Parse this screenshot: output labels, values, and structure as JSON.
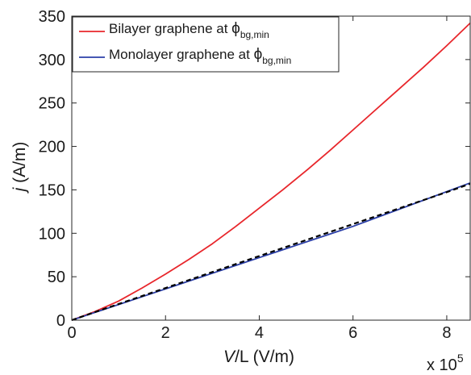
{
  "chart_data": {
    "type": "line",
    "title": "",
    "xlabel": {
      "italic": "V",
      "rest": "/L (V/m)"
    },
    "ylabel": {
      "italic": "j",
      "rest": " (A/m)"
    },
    "x_multiplier_label": {
      "base": "x 10",
      "exponent": "5"
    },
    "xlim": [
      0,
      8.5
    ],
    "ylim": [
      0,
      350
    ],
    "x_ticks": [
      0,
      2,
      4,
      6,
      8
    ],
    "y_ticks": [
      0,
      50,
      100,
      150,
      200,
      250,
      300,
      350
    ],
    "grid": false,
    "legend_position": "top-left",
    "series": [
      {
        "name": "Bilayer graphene at ",
        "name_symbol": "ϕ",
        "name_subscript": "bg,min",
        "color": "#e8262b",
        "dash": "solid",
        "x": [
          0,
          0.5,
          1,
          1.5,
          2,
          2.5,
          3,
          3.5,
          4,
          4.5,
          5,
          5.5,
          6,
          6.5,
          7,
          7.5,
          8,
          8.5
        ],
        "y": [
          0,
          10,
          22,
          37,
          53,
          70,
          88,
          108,
          129,
          150,
          172,
          195,
          219,
          243,
          267,
          291,
          316,
          342
        ]
      },
      {
        "name": "Monolayer graphene at ",
        "name_symbol": "ϕ",
        "name_subscript": "bg,min",
        "color": "#2b3fa8",
        "dash": "solid",
        "x": [
          0,
          0.5,
          1,
          1.5,
          2,
          2.5,
          3,
          3.5,
          4,
          4.5,
          5,
          5.5,
          6,
          6.5,
          7,
          7.5,
          8,
          8.5
        ],
        "y": [
          0,
          9,
          18,
          27,
          36,
          45,
          54,
          63,
          72,
          81,
          90,
          99,
          108,
          118,
          128,
          138,
          148,
          158
        ]
      },
      {
        "name": "",
        "color": "#000000",
        "dash": "dashed",
        "x": [
          0,
          0.5,
          1,
          1.5,
          2,
          2.5,
          3,
          3.5,
          4,
          4.5,
          5,
          5.5,
          6,
          6.5,
          7,
          7.5,
          8,
          8.5
        ],
        "y": [
          0,
          9.4,
          18.6,
          27.8,
          37,
          46.2,
          55.4,
          64.6,
          73.8,
          83,
          92.2,
          101.4,
          110.6,
          119.8,
          129,
          138.2,
          147.4,
          157
        ]
      }
    ]
  }
}
